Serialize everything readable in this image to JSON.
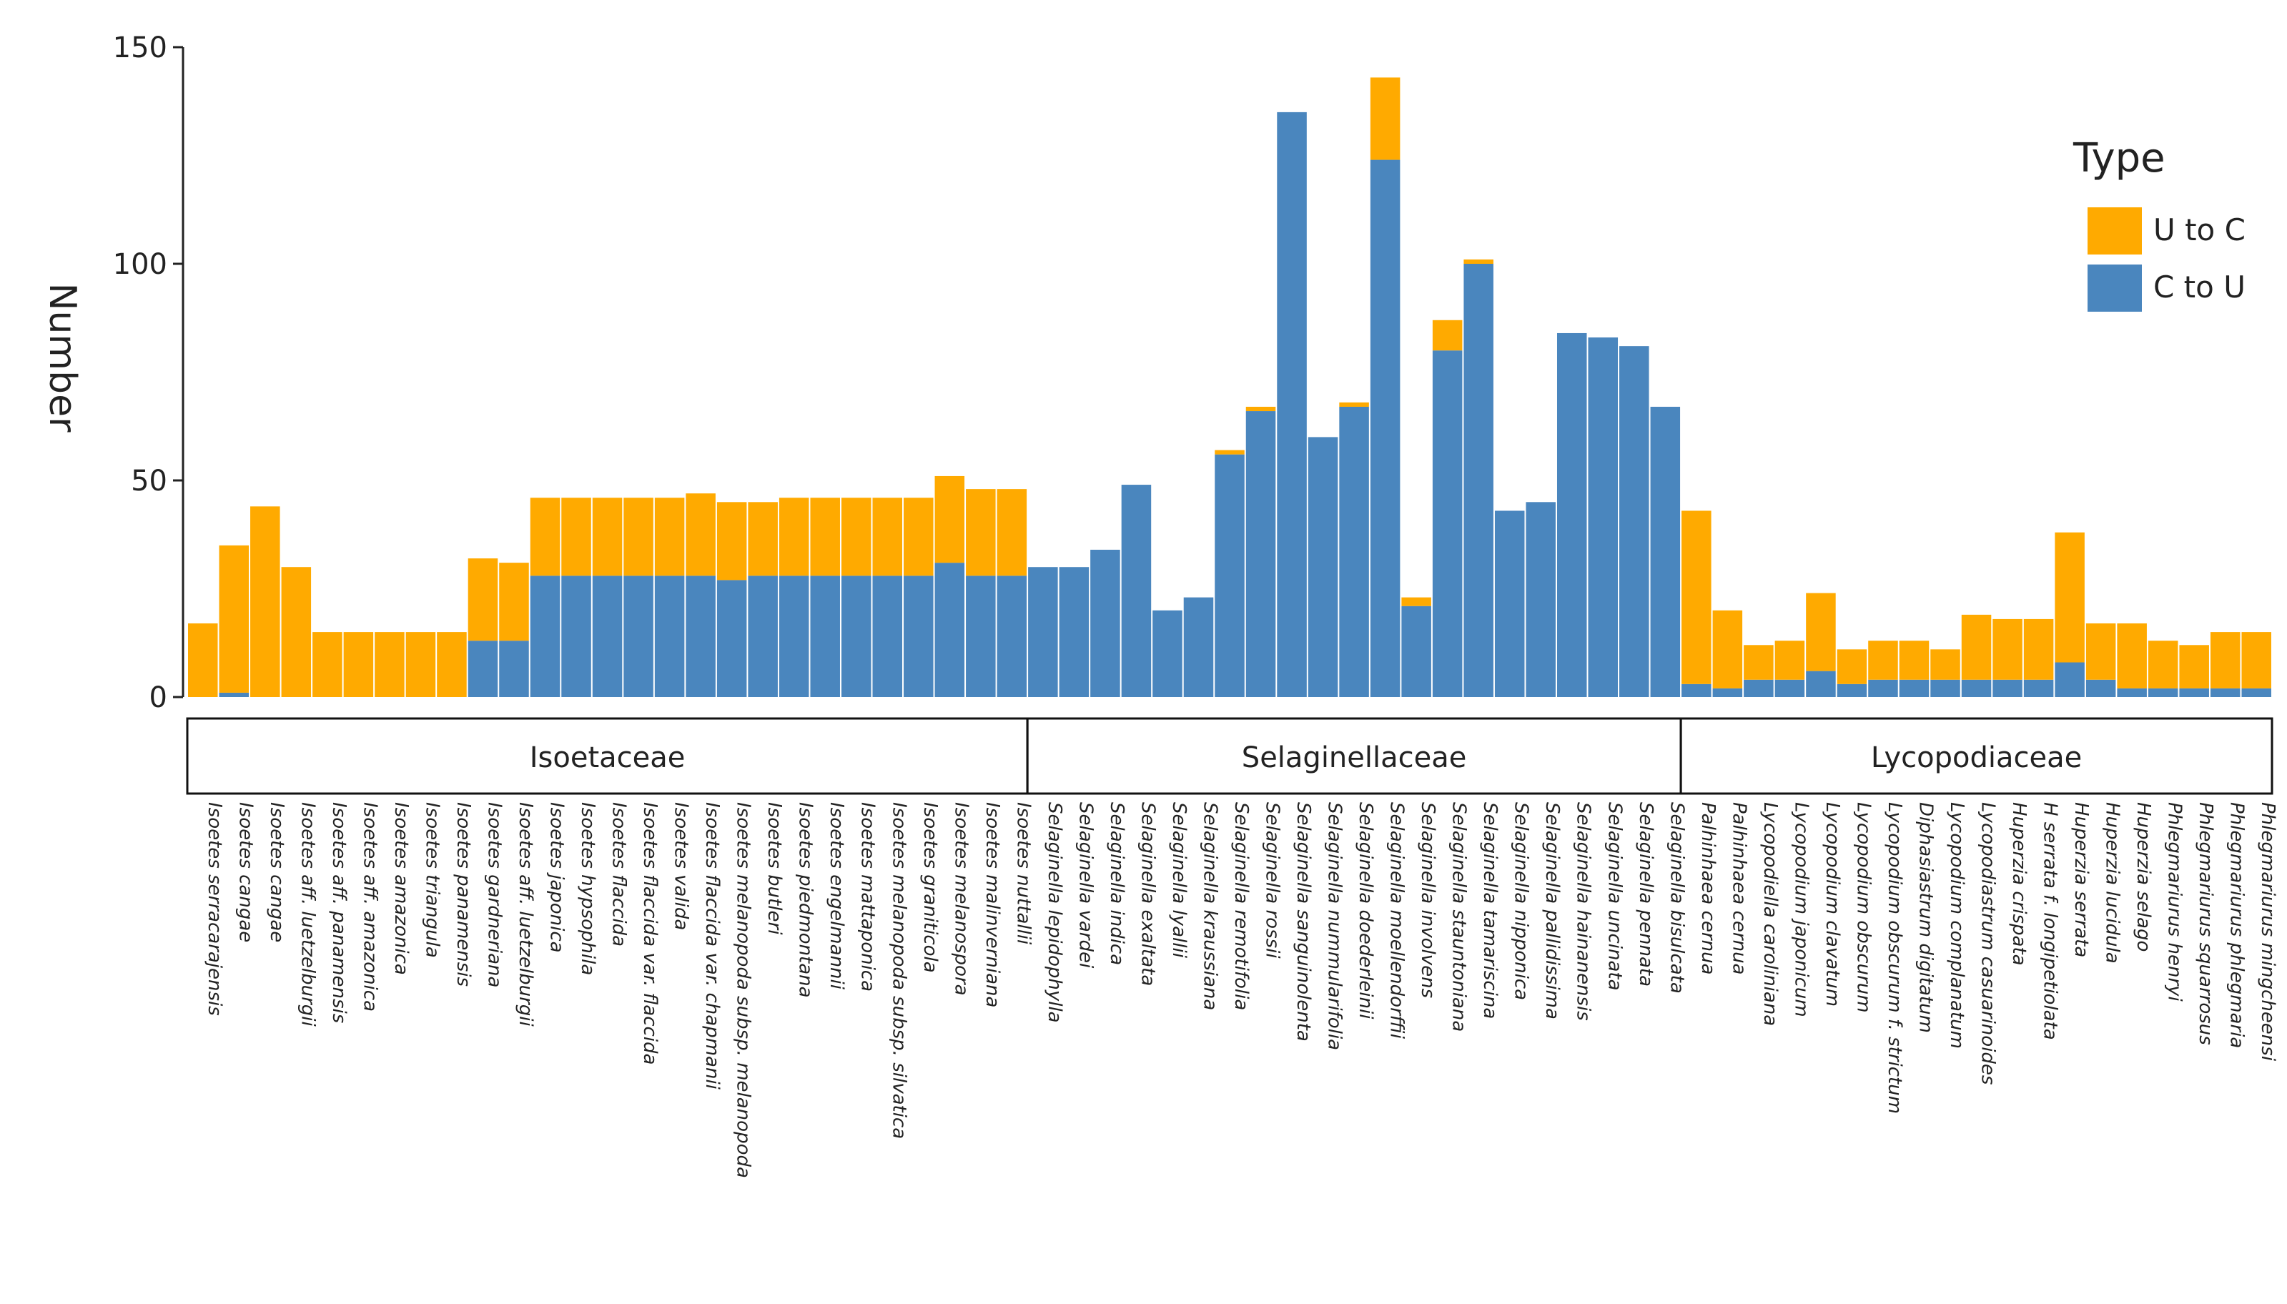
{
  "chart_data": {
    "type": "stacked_bar",
    "y_label": "Number",
    "legend_title": "Type",
    "legend_position": "upper right",
    "ylim": [
      0,
      150
    ],
    "yticks": [
      0,
      50,
      100,
      150
    ],
    "groups": [
      {
        "label": "Isoetaceae",
        "categories": [
          "Isoetes serracarajensis",
          "Isoetes cangae",
          "Isoetes cangae",
          "Isoetes aff. luetzelburgii",
          "Isoetes aff. panamensis",
          "Isoetes aff. amazonica",
          "Isoetes amazonica",
          "Isoetes triangula",
          "Isoetes panamensis",
          "Isoetes gardneriana",
          "Isoetes aff. luetzelburgii",
          "Isoetes japonica",
          "Isoetes hypsophila",
          "Isoetes flaccida",
          "Isoetes flaccida var. flaccida",
          "Isoetes valida",
          "Isoetes flaccida var. chapmanii",
          "Isoetes melanopoda subsp. melanopoda",
          "Isoetes butleri",
          "Isoetes piedmontana",
          "Isoetes engelmannii",
          "Isoetes mattaponica",
          "Isoetes melanopoda subsp. silvatica",
          "Isoetes graniticola",
          "Isoetes melanospora",
          "Isoetes malinverniana",
          "Isoetes nuttallii"
        ]
      },
      {
        "label": "Selaginellaceae",
        "categories": [
          "Selaginella lepidophylla",
          "Selaginella vardei",
          "Selaginella indica",
          "Selaginella exaltata",
          "Selaginella lyallii",
          "Selaginella kraussiana",
          "Selaginella remotifolia",
          "Selaginella rossii",
          "Selaginella sanguinolenta",
          "Selaginella nummularifolia",
          "Selaginella doederleinii",
          "Selaginella moellendorffii",
          "Selaginella involvens",
          "Selaginella stauntoniana",
          "Selaginella tamariscina",
          "Selaginella nipponica",
          "Selaginella pallidissima",
          "Selaginella hainanensis",
          "Selaginella uncinata",
          "Selaginella pennata",
          "Selaginella bisulcata"
        ]
      },
      {
        "label": "Lycopodiaceae",
        "categories": [
          "Palhinhaea cernua",
          "Palhinhaea cernua",
          "Lycopodiella caroliniana",
          "Lycopodium japonicum",
          "Lycopodium clavatum",
          "Lycopodium obscurum",
          "Lycopodium obscurum f. strictum",
          "Diphasiastrum digitatum",
          "Lycopodium complanatum",
          "Lycopodiastrum casuarinoides",
          "Huperzia crispata",
          "H serrata f. longipetiolata",
          "Huperzia serrata",
          "Huperzia lucidula",
          "Huperzia selago",
          "Phlegmariurus henryi",
          "Phlegmariurus squarrosus",
          "Phlegmariurus phlegmaria",
          "Phlegmariurus mingcheensi"
        ]
      }
    ],
    "series": [
      {
        "name": "C to U",
        "color": "#4a86be",
        "values": [
          0,
          1,
          0,
          0,
          0,
          0,
          0,
          0,
          0,
          13,
          13,
          28,
          28,
          28,
          28,
          28,
          28,
          27,
          28,
          28,
          28,
          28,
          28,
          28,
          31,
          28,
          28,
          30,
          30,
          34,
          49,
          20,
          23,
          56,
          66,
          135,
          60,
          67,
          124,
          21,
          80,
          100,
          43,
          45,
          84,
          83,
          81,
          67,
          3,
          2,
          4,
          4,
          6,
          3,
          4,
          4,
          4,
          4,
          4,
          4,
          8,
          4,
          2,
          2,
          2,
          2,
          2
        ]
      },
      {
        "name": "U to C",
        "color": "#ffaa00",
        "values": [
          17,
          34,
          44,
          30,
          15,
          15,
          15,
          15,
          15,
          19,
          18,
          18,
          18,
          18,
          18,
          18,
          19,
          18,
          17,
          18,
          18,
          18,
          18,
          18,
          20,
          20,
          20,
          0,
          0,
          0,
          0,
          0,
          0,
          1,
          1,
          0,
          0,
          1,
          19,
          2,
          7,
          1,
          0,
          0,
          0,
          0,
          0,
          0,
          40,
          18,
          8,
          9,
          18,
          8,
          9,
          9,
          7,
          15,
          14,
          14,
          30,
          13,
          15,
          11,
          10,
          13,
          13
        ]
      }
    ]
  }
}
